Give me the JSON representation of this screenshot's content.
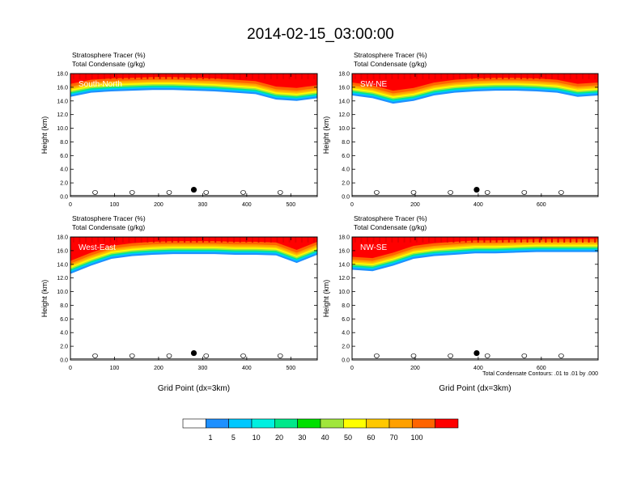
{
  "figure": {
    "title": "2014-02-15_03:00:00",
    "footnote": "Total Condensate Contours: .01 to .01 by .000",
    "colorbar": {
      "labels": [
        "1",
        "5",
        "10",
        "20",
        "30",
        "40",
        "50",
        "60",
        "70",
        "100"
      ],
      "colors": [
        "#ffffff",
        "#1e90ff",
        "#00c8ff",
        "#00f0e0",
        "#00e88a",
        "#00e000",
        "#a0e63c",
        "#ffff00",
        "#ffc800",
        "#ffa000",
        "#ff6400",
        "#ff0000"
      ]
    }
  },
  "chart_data": [
    {
      "type": "heatmap",
      "title_line1": "Stratosphere Tracer   (%)",
      "title_line2": "Total Condensate   (g/kg)",
      "label": "South-North",
      "ylabel": "Height (km)",
      "xlabel": "",
      "xlim": [
        0,
        560
      ],
      "ylim": [
        0,
        18
      ],
      "xticks": [
        "0",
        "100",
        "200",
        "300",
        "400",
        "500"
      ],
      "yticks": [
        "0.0",
        "2.0",
        "4.0",
        "6.0",
        "8.0",
        "10.0",
        "12.0",
        "14.0",
        "16.0",
        "18.0"
      ],
      "marker_x": 280,
      "layer_bottom_km": [
        14.6,
        15.2,
        15.4,
        15.5,
        15.6,
        15.6,
        15.5,
        15.4,
        15.2,
        15.0,
        14.2,
        14.0,
        14.4
      ]
    },
    {
      "type": "heatmap",
      "title_line1": "Stratosphere Tracer   (%)",
      "title_line2": "Total Condensate   (g/kg)",
      "label": "SW-NE",
      "ylabel": "Height (km)",
      "xlabel": "",
      "xlim": [
        0,
        780
      ],
      "ylim": [
        0,
        18
      ],
      "xticks": [
        "0",
        "200",
        "400",
        "600"
      ],
      "yticks": [
        "0.0",
        "2.0",
        "4.0",
        "6.0",
        "8.0",
        "10.0",
        "12.0",
        "14.0",
        "16.0",
        "18.0"
      ],
      "marker_x": 395,
      "layer_bottom_km": [
        14.8,
        14.4,
        13.6,
        14.0,
        14.8,
        15.2,
        15.4,
        15.5,
        15.5,
        15.4,
        15.2,
        14.6,
        14.8
      ]
    },
    {
      "type": "heatmap",
      "title_line1": "Stratosphere Tracer   (%)",
      "title_line2": "Total Condensate   (g/kg)",
      "label": "West-East",
      "ylabel": "Height (km)",
      "xlabel": "Grid Point (dx=3km)",
      "xlim": [
        0,
        560
      ],
      "ylim": [
        0,
        18
      ],
      "xticks": [
        "0",
        "100",
        "200",
        "300",
        "400",
        "500"
      ],
      "yticks": [
        "0.0",
        "2.0",
        "4.0",
        "6.0",
        "8.0",
        "10.0",
        "12.0",
        "14.0",
        "16.0",
        "18.0"
      ],
      "marker_x": 280,
      "layer_bottom_km": [
        12.6,
        13.8,
        14.8,
        15.2,
        15.4,
        15.5,
        15.5,
        15.5,
        15.4,
        15.4,
        15.3,
        14.2,
        15.4
      ]
    },
    {
      "type": "heatmap",
      "title_line1": "Stratosphere Tracer   (%)",
      "title_line2": "Total Condensate   (g/kg)",
      "label": "NW-SE",
      "ylabel": "Height (km)",
      "xlabel": "Grid Point (dx=3km)",
      "xlim": [
        0,
        780
      ],
      "ylim": [
        0,
        18
      ],
      "xticks": [
        "0",
        "200",
        "400",
        "600"
      ],
      "yticks": [
        "0.0",
        "2.0",
        "4.0",
        "6.0",
        "8.0",
        "10.0",
        "12.0",
        "14.0",
        "16.0",
        "18.0"
      ],
      "marker_x": 395,
      "layer_bottom_km": [
        13.2,
        13.0,
        13.8,
        14.8,
        15.2,
        15.4,
        15.6,
        15.6,
        15.7,
        15.8,
        15.8,
        15.8,
        15.8
      ]
    }
  ]
}
